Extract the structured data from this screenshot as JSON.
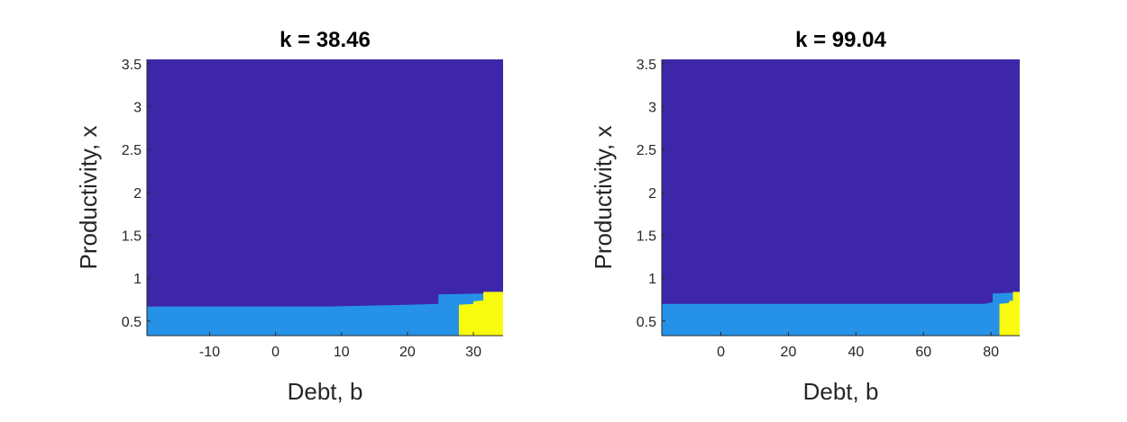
{
  "colors": {
    "background": "#ffffff",
    "region_dark": "#3e26a8",
    "region_light": "#2592e8",
    "region_yellow": "#f9fb0e",
    "axis": "#262626"
  },
  "chart_data": [
    {
      "type": "heatmap",
      "title": "k = 38.46",
      "xlabel": "Debt, b",
      "ylabel": "Productivity, x",
      "xlim": [
        -19.5,
        34.5
      ],
      "ylim": [
        0.33,
        3.55
      ],
      "xticks": [
        -10,
        0,
        10,
        20,
        30
      ],
      "xtick_labels": [
        "-10",
        "0",
        "10",
        "20",
        "30"
      ],
      "yticks": [
        0.5,
        1,
        1.5,
        2,
        2.5,
        3,
        3.5
      ],
      "ytick_labels": [
        "0.5",
        "1",
        "1.5",
        "2",
        "2.5",
        "3",
        "3.5"
      ],
      "grid": false,
      "regions": [
        {
          "color": "region_dark",
          "polygon": [
            [
              -19.5,
              0.33
            ],
            [
              34.5,
              0.33
            ],
            [
              34.5,
              3.55
            ],
            [
              -19.5,
              3.55
            ]
          ]
        },
        {
          "color": "region_light",
          "polygon": [
            [
              -19.5,
              0.33
            ],
            [
              34.5,
              0.33
            ],
            [
              34.5,
              0.84
            ],
            [
              31.5,
              0.84
            ],
            [
              31.5,
              0.82
            ],
            [
              24.7,
              0.81
            ],
            [
              24.7,
              0.7
            ],
            [
              20,
              0.69
            ],
            [
              8,
              0.67
            ],
            [
              -19.5,
              0.67
            ]
          ]
        },
        {
          "color": "region_yellow",
          "polygon": [
            [
              27.8,
              0.33
            ],
            [
              34.5,
              0.33
            ],
            [
              34.5,
              0.84
            ],
            [
              31.5,
              0.84
            ],
            [
              31.5,
              0.74
            ],
            [
              30.0,
              0.73
            ],
            [
              30.0,
              0.7
            ],
            [
              27.8,
              0.69
            ]
          ]
        }
      ]
    },
    {
      "type": "heatmap",
      "title": "k = 99.04",
      "xlabel": "Debt, b",
      "ylabel": "Productivity, x",
      "xlim": [
        -17.5,
        88.5
      ],
      "ylim": [
        0.33,
        3.55
      ],
      "xticks": [
        0,
        20,
        40,
        60,
        80
      ],
      "xtick_labels": [
        "0",
        "20",
        "40",
        "60",
        "80"
      ],
      "yticks": [
        0.5,
        1,
        1.5,
        2,
        2.5,
        3,
        3.5
      ],
      "ytick_labels": [
        "0.5",
        "1",
        "1.5",
        "2",
        "2.5",
        "3",
        "3.5"
      ],
      "grid": false,
      "regions": [
        {
          "color": "region_dark",
          "polygon": [
            [
              -17.5,
              0.33
            ],
            [
              88.5,
              0.33
            ],
            [
              88.5,
              3.55
            ],
            [
              -17.5,
              3.55
            ]
          ]
        },
        {
          "color": "region_light",
          "polygon": [
            [
              -17.5,
              0.33
            ],
            [
              88.5,
              0.33
            ],
            [
              88.5,
              0.84
            ],
            [
              86.5,
              0.84
            ],
            [
              86.5,
              0.83
            ],
            [
              80.5,
              0.82
            ],
            [
              80.5,
              0.72
            ],
            [
              78,
              0.7
            ],
            [
              -17.5,
              0.7
            ]
          ]
        },
        {
          "color": "region_yellow",
          "polygon": [
            [
              82.5,
              0.33
            ],
            [
              88.5,
              0.33
            ],
            [
              88.5,
              0.84
            ],
            [
              86.5,
              0.84
            ],
            [
              86.5,
              0.74
            ],
            [
              85.3,
              0.73
            ],
            [
              85.3,
              0.71
            ],
            [
              82.5,
              0.7
            ]
          ]
        }
      ]
    }
  ]
}
